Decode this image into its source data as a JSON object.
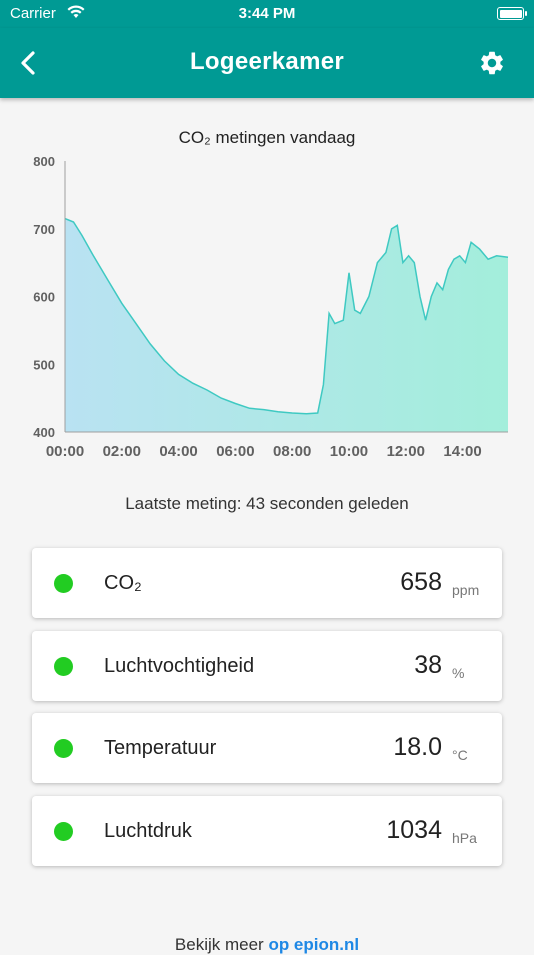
{
  "status_bar": {
    "carrier": "Carrier",
    "time": "3:44 PM"
  },
  "app_bar": {
    "title": "Logeerkamer"
  },
  "chart_data": {
    "type": "area",
    "title": "CO₂ metingen vandaag",
    "ylim": [
      400,
      800
    ],
    "y_ticks": [
      400,
      500,
      600,
      700,
      800
    ],
    "xlim": [
      0,
      15.6
    ],
    "x_ticks": [
      {
        "value": 0,
        "label": "00:00"
      },
      {
        "value": 2,
        "label": "02:00"
      },
      {
        "value": 4,
        "label": "04:00"
      },
      {
        "value": 6,
        "label": "06:00"
      },
      {
        "value": 8,
        "label": "08:00"
      },
      {
        "value": 10,
        "label": "10:00"
      },
      {
        "value": 12,
        "label": "12:00"
      },
      {
        "value": 14,
        "label": "14:00"
      }
    ],
    "x": [
      0,
      0.3,
      0.6,
      1.0,
      1.5,
      2.0,
      2.5,
      3.0,
      3.5,
      4.0,
      4.5,
      5.0,
      5.5,
      6.0,
      6.5,
      7.0,
      7.5,
      8.0,
      8.5,
      8.9,
      9.1,
      9.3,
      9.5,
      9.8,
      10.0,
      10.2,
      10.4,
      10.7,
      11.0,
      11.3,
      11.5,
      11.7,
      11.9,
      12.1,
      12.3,
      12.5,
      12.7,
      12.9,
      13.1,
      13.3,
      13.5,
      13.7,
      13.9,
      14.1,
      14.3,
      14.6,
      14.9,
      15.2,
      15.6
    ],
    "values": [
      715,
      710,
      690,
      660,
      625,
      590,
      560,
      530,
      505,
      485,
      472,
      462,
      450,
      442,
      435,
      433,
      430,
      428,
      427,
      428,
      470,
      575,
      560,
      565,
      635,
      580,
      575,
      600,
      650,
      665,
      700,
      705,
      650,
      660,
      650,
      600,
      565,
      600,
      620,
      610,
      640,
      655,
      660,
      650,
      680,
      670,
      655,
      660,
      658
    ],
    "grid": false,
    "legend": "none",
    "colors": {
      "line": "#3fc9c2",
      "fill_start": "#b9e2f2",
      "fill_end": "#a3eedb",
      "axis": "#9e9e9e",
      "tick_label": "#616161"
    }
  },
  "last_measurement": "Laatste meting: 43 seconden geleden",
  "readings": [
    {
      "label": "CO₂",
      "value": "658",
      "unit": "ppm",
      "status_color": "#22cc22"
    },
    {
      "label": "Luchtvochtigheid",
      "value": "38",
      "unit": "%",
      "status_color": "#22cc22"
    },
    {
      "label": "Temperatuur",
      "value": "18.0",
      "unit": "°C",
      "status_color": "#22cc22"
    },
    {
      "label": "Luchtdruk",
      "value": "1034",
      "unit": "hPa",
      "status_color": "#22cc22"
    }
  ],
  "footer": {
    "prefix": "Bekijk meer ",
    "link": "op epion.nl"
  }
}
